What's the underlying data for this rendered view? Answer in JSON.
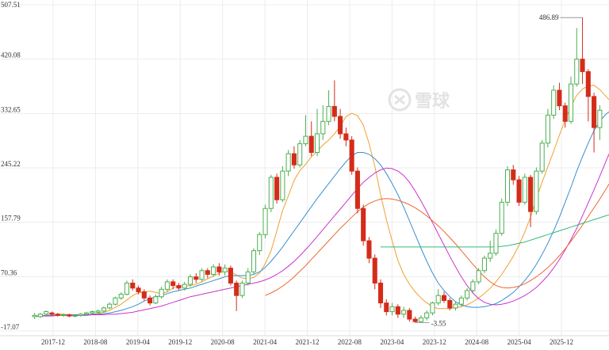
{
  "watermark": {
    "brand": "雪球"
  },
  "colors": {
    "up": "#4caf50",
    "down": "#d42c1a",
    "grid": "#ececec",
    "ma5": "#f0a030",
    "ma10": "#3a8fd0",
    "ma20": "#cc33cc",
    "ma30": "#ee6633",
    "ma60": "#33bb77"
  },
  "chart_data": {
    "type": "candlestick",
    "title": "",
    "xlabel": "",
    "ylabel": "",
    "ylim": [
      -17.07,
      507.51
    ],
    "y_ticks": [
      "507.51",
      "420.08",
      "332.65",
      "245.22",
      "157.79",
      "70.36",
      "-17.07"
    ],
    "x_ticks": [
      "2017-12",
      "2018-08",
      "2019-04",
      "2019-12",
      "2020-08",
      "2021-04",
      "2021-12",
      "2022-08",
      "2023-04",
      "2023-12",
      "2024-08",
      "2025-04",
      "2025-12"
    ],
    "annotations": [
      {
        "label": "486.89",
        "value": 486.89,
        "kind": "max"
      },
      {
        "label": "-3.55",
        "value": -3.55,
        "kind": "min"
      }
    ],
    "candles": [
      [
        6,
        8,
        12,
        2
      ],
      [
        6,
        10,
        12,
        4
      ],
      [
        10,
        14,
        16,
        8
      ],
      [
        12,
        10,
        14,
        8
      ],
      [
        10,
        8,
        12,
        6
      ],
      [
        8,
        9,
        11,
        6
      ],
      [
        9,
        7,
        11,
        5
      ],
      [
        7,
        8,
        10,
        5
      ],
      [
        8,
        10,
        12,
        6
      ],
      [
        10,
        12,
        14,
        8
      ],
      [
        12,
        14,
        16,
        10
      ],
      [
        13,
        15,
        17,
        11
      ],
      [
        15,
        20,
        22,
        13
      ],
      [
        20,
        26,
        29,
        18
      ],
      [
        26,
        36,
        38,
        24
      ],
      [
        36,
        42,
        45,
        33
      ],
      [
        42,
        60,
        64,
        40
      ],
      [
        60,
        52,
        66,
        48
      ],
      [
        52,
        46,
        56,
        42
      ],
      [
        46,
        36,
        50,
        32
      ],
      [
        36,
        28,
        40,
        24
      ],
      [
        28,
        38,
        42,
        26
      ],
      [
        38,
        50,
        54,
        35
      ],
      [
        50,
        62,
        66,
        46
      ],
      [
        62,
        56,
        66,
        50
      ],
      [
        56,
        52,
        60,
        48
      ],
      [
        52,
        58,
        62,
        48
      ],
      [
        58,
        70,
        74,
        54
      ],
      [
        70,
        66,
        76,
        60
      ],
      [
        66,
        80,
        84,
        62
      ],
      [
        80,
        74,
        84,
        68
      ],
      [
        74,
        86,
        90,
        70
      ],
      [
        86,
        78,
        92,
        72
      ],
      [
        78,
        84,
        90,
        72
      ],
      [
        84,
        60,
        88,
        56
      ],
      [
        60,
        40,
        64,
        15
      ],
      [
        40,
        60,
        64,
        36
      ],
      [
        60,
        78,
        84,
        56
      ],
      [
        78,
        112,
        116,
        74
      ],
      [
        112,
        138,
        142,
        105
      ],
      [
        138,
        180,
        186,
        132
      ],
      [
        180,
        230,
        234,
        174
      ],
      [
        230,
        194,
        236,
        188
      ],
      [
        194,
        240,
        248,
        190
      ],
      [
        240,
        268,
        274,
        232
      ],
      [
        268,
        250,
        280,
        244
      ],
      [
        250,
        284,
        290,
        246
      ],
      [
        284,
        296,
        330,
        280
      ],
      [
        296,
        270,
        320,
        264
      ],
      [
        270,
        300,
        340,
        264
      ],
      [
        300,
        320,
        346,
        290
      ],
      [
        320,
        344,
        370,
        314
      ],
      [
        344,
        328,
        386,
        320
      ],
      [
        328,
        300,
        340,
        292
      ],
      [
        300,
        290,
        310,
        280
      ],
      [
        290,
        240,
        296,
        234
      ],
      [
        240,
        180,
        246,
        172
      ],
      [
        180,
        128,
        186,
        120
      ],
      [
        128,
        100,
        134,
        92
      ],
      [
        100,
        60,
        106,
        50
      ],
      [
        60,
        28,
        66,
        20
      ],
      [
        28,
        14,
        34,
        8
      ],
      [
        14,
        22,
        28,
        8
      ],
      [
        22,
        10,
        26,
        4
      ],
      [
        10,
        16,
        22,
        4
      ],
      [
        16,
        2,
        20,
        -2
      ],
      [
        2,
        -2,
        6,
        -3.55
      ],
      [
        -2,
        4,
        8,
        -3
      ],
      [
        4,
        12,
        16,
        0
      ],
      [
        12,
        28,
        30,
        8
      ],
      [
        28,
        40,
        50,
        24
      ],
      [
        40,
        32,
        46,
        28
      ],
      [
        32,
        20,
        36,
        16
      ],
      [
        20,
        26,
        30,
        16
      ],
      [
        26,
        36,
        40,
        22
      ],
      [
        36,
        48,
        52,
        32
      ],
      [
        48,
        62,
        66,
        44
      ],
      [
        62,
        80,
        84,
        58
      ],
      [
        80,
        100,
        104,
        76
      ],
      [
        100,
        108,
        128,
        94
      ],
      [
        108,
        140,
        146,
        104
      ],
      [
        140,
        190,
        196,
        136
      ],
      [
        190,
        242,
        248,
        184
      ],
      [
        242,
        226,
        250,
        218
      ],
      [
        226,
        190,
        232,
        184
      ],
      [
        190,
        230,
        236,
        186
      ],
      [
        230,
        175,
        234,
        150
      ],
      [
        175,
        240,
        246,
        170
      ],
      [
        240,
        285,
        290,
        236
      ],
      [
        285,
        330,
        340,
        278
      ],
      [
        330,
        370,
        378,
        324
      ],
      [
        370,
        345,
        382,
        338
      ],
      [
        345,
        320,
        350,
        310
      ],
      [
        320,
        380,
        392,
        316
      ],
      [
        380,
        420,
        470,
        376
      ],
      [
        420,
        400,
        486.89,
        380
      ],
      [
        400,
        360,
        404,
        320
      ],
      [
        360,
        310,
        366,
        270
      ],
      [
        310,
        338,
        346,
        290
      ]
    ],
    "series": [
      {
        "values": [
          7,
          7,
          8,
          9,
          10,
          10,
          9,
          8,
          8,
          9,
          10,
          11,
          13,
          16,
          21,
          26,
          33,
          40,
          44,
          46,
          47,
          45,
          43,
          46,
          52,
          56,
          55,
          56,
          58,
          62,
          67,
          71,
          76,
          79,
          78,
          73,
          68,
          67,
          69,
          76,
          91,
          112,
          144,
          177,
          200,
          225,
          241,
          251,
          263,
          272,
          282,
          290,
          300,
          312,
          328,
          333,
          329,
          314,
          284,
          248,
          202,
          162,
          128,
          96,
          74,
          58,
          46,
          36,
          28,
          22,
          19,
          19,
          19,
          20,
          22,
          25,
          30,
          36,
          43,
          52,
          62,
          74,
          88,
          103,
          121,
          142,
          166,
          196,
          222,
          247,
          272,
          298,
          322,
          344,
          362,
          372,
          377,
          378,
          371,
          361,
          351
        ]
      },
      {
        "values": [
          7,
          7,
          8,
          8,
          8,
          9,
          9,
          9,
          9,
          9,
          10,
          10,
          11,
          12,
          14,
          16,
          19,
          22,
          26,
          31,
          35,
          38,
          40,
          43,
          46,
          48,
          50,
          52,
          55,
          58,
          61,
          64,
          67,
          70,
          72,
          72,
          72,
          72,
          74,
          78,
          85,
          95,
          106,
          118,
          131,
          144,
          157,
          170,
          183,
          196,
          208,
          220,
          232,
          244,
          255,
          265,
          270,
          270,
          267,
          260,
          250,
          236,
          220,
          202,
          182,
          160,
          138,
          116,
          95,
          76,
          60,
          48,
          38,
          30,
          25,
          22,
          21,
          21,
          22,
          24,
          27,
          32,
          38,
          45,
          54,
          64,
          76,
          90,
          106,
          124,
          144,
          166,
          190,
          214,
          240,
          263,
          285,
          305,
          320,
          331,
          338
        ]
      },
      {
        "values": [
          7,
          7,
          7,
          7,
          8,
          8,
          8,
          8,
          8,
          8,
          9,
          9,
          9,
          10,
          10,
          11,
          12,
          13,
          15,
          17,
          19,
          21,
          23,
          26,
          29,
          32,
          35,
          38,
          40,
          42,
          44,
          46,
          48,
          50,
          52,
          54,
          56,
          58,
          60,
          62,
          65,
          69,
          74,
          80,
          87,
          95,
          104,
          114,
          124,
          135,
          146,
          157,
          168,
          179,
          190,
          201,
          212,
          222,
          230,
          237,
          242,
          245,
          244,
          240,
          233,
          222,
          208,
          192,
          175,
          157,
          139,
          121,
          103,
          86,
          70,
          56,
          44,
          35,
          29,
          26,
          25,
          26,
          28,
          31,
          35,
          40,
          46,
          53,
          62,
          72,
          84,
          98,
          113,
          130,
          148,
          168,
          189,
          210,
          232,
          254,
          276
        ]
      },
      {
        "values": [
          null,
          null,
          null,
          null,
          null,
          null,
          null,
          null,
          null,
          null,
          null,
          null,
          null,
          null,
          null,
          null,
          null,
          null,
          null,
          null,
          null,
          null,
          null,
          null,
          null,
          null,
          null,
          null,
          null,
          null,
          null,
          null,
          null,
          null,
          null,
          null,
          null,
          null,
          null,
          null,
          40,
          44,
          49,
          55,
          62,
          70,
          79,
          88,
          98,
          108,
          118,
          128,
          138,
          148,
          157,
          166,
          175,
          182,
          188,
          192,
          195,
          196,
          195,
          193,
          190,
          186,
          181,
          175,
          168,
          160,
          152,
          143,
          133,
          123,
          112,
          101,
          90,
          80,
          70,
          62,
          56,
          53,
          52,
          53,
          55,
          59,
          64,
          70,
          77,
          85,
          94,
          104,
          115,
          127,
          140,
          153,
          167,
          181,
          195,
          210,
          225
        ]
      },
      {
        "values": [
          null,
          null,
          null,
          null,
          null,
          null,
          null,
          null,
          null,
          null,
          null,
          null,
          null,
          null,
          null,
          null,
          null,
          null,
          null,
          null,
          null,
          null,
          null,
          null,
          null,
          null,
          null,
          null,
          null,
          null,
          null,
          null,
          null,
          null,
          null,
          null,
          null,
          null,
          null,
          null,
          null,
          null,
          null,
          null,
          null,
          null,
          null,
          null,
          null,
          null,
          null,
          null,
          null,
          null,
          null,
          null,
          null,
          null,
          null,
          null,
          118,
          118,
          118,
          118,
          118,
          118,
          118,
          118,
          118,
          118,
          118,
          118,
          118,
          118,
          118,
          118,
          118,
          118,
          118,
          118,
          118,
          119,
          120,
          122,
          124,
          126,
          129,
          132,
          135,
          138,
          141,
          144,
          147,
          150,
          153,
          156,
          159,
          162,
          165,
          168,
          171
        ]
      }
    ]
  }
}
